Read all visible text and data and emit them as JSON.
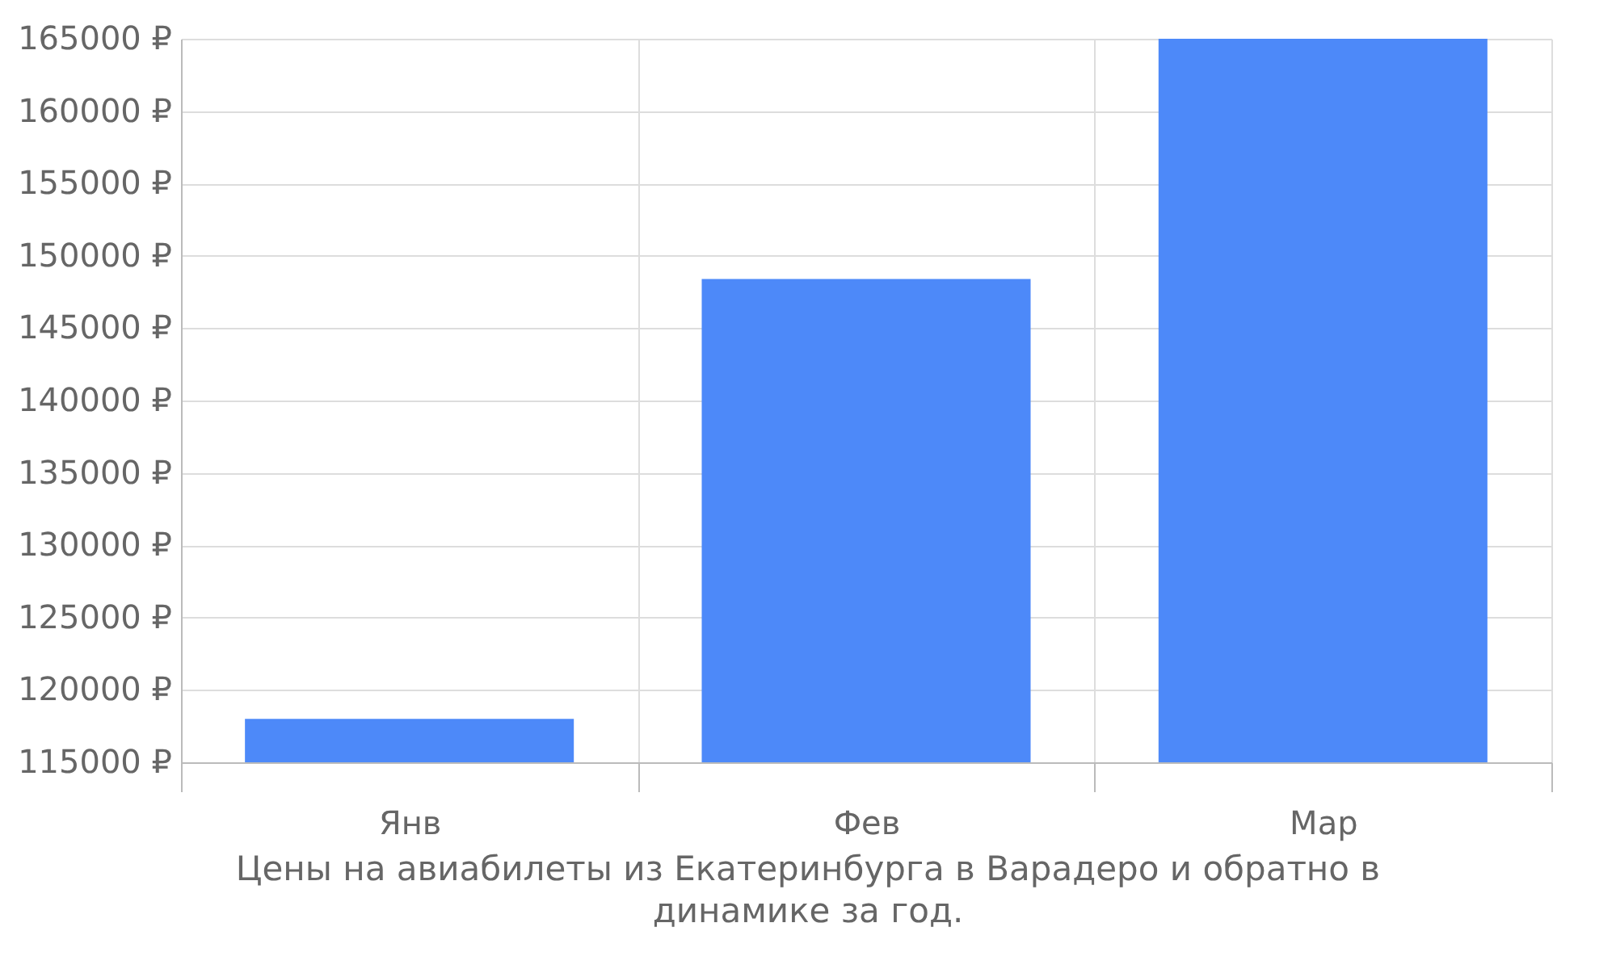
{
  "chart_data": {
    "type": "bar",
    "categories": [
      "Янв",
      "Фев",
      "Мар"
    ],
    "values": [
      118000,
      148400,
      165000
    ],
    "color": "#4d89f9",
    "ylim": [
      115000,
      165000
    ],
    "yticks": [
      {
        "value": 115000,
        "label": "115000 ₽"
      },
      {
        "value": 120000,
        "label": "120000 ₽"
      },
      {
        "value": 125000,
        "label": "125000 ₽"
      },
      {
        "value": 130000,
        "label": "130000 ₽"
      },
      {
        "value": 135000,
        "label": "135000 ₽"
      },
      {
        "value": 140000,
        "label": "140000 ₽"
      },
      {
        "value": 145000,
        "label": "145000 ₽"
      },
      {
        "value": 150000,
        "label": "150000 ₽"
      },
      {
        "value": 155000,
        "label": "155000 ₽"
      },
      {
        "value": 160000,
        "label": "160000 ₽"
      },
      {
        "value": 165000,
        "label": "165000 ₽"
      }
    ],
    "grid": true,
    "annotations": [
      "Цены на авиабилеты из Екатеринбурга в Варадеро и обратно в динамике за год."
    ]
  }
}
